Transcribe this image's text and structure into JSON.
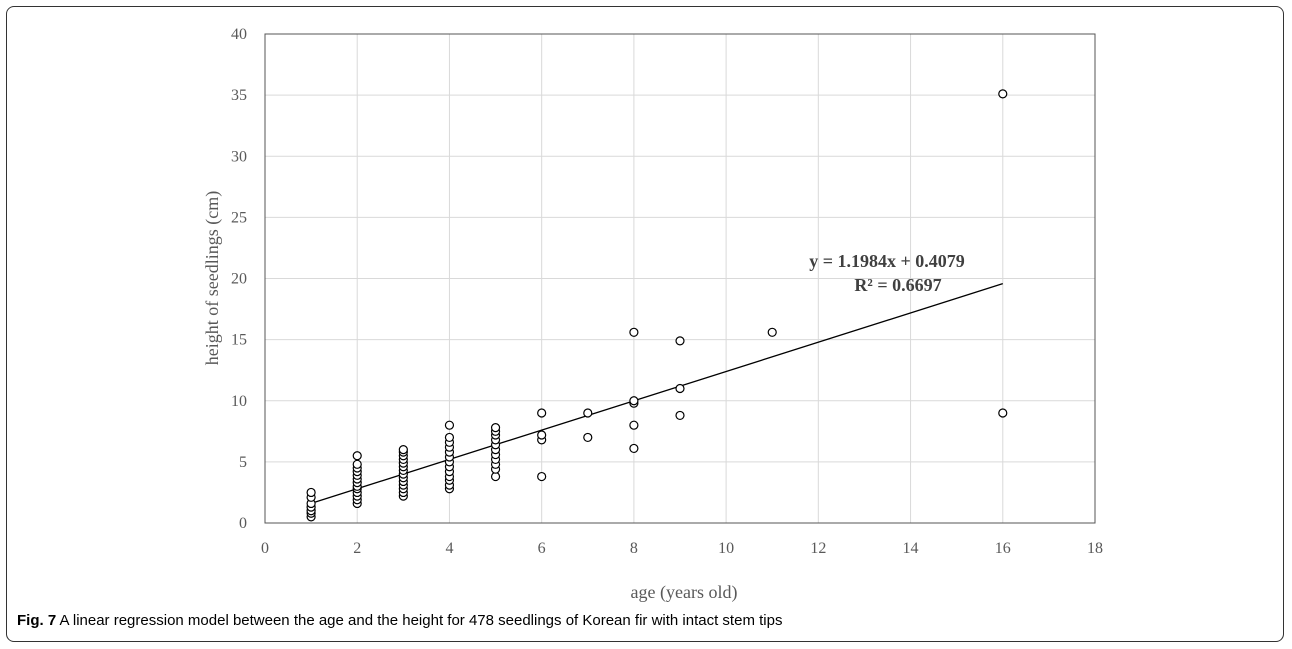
{
  "caption": {
    "label": "Fig. 7",
    "text": "A linear regression model between the age and the height for 478 seedlings of Korean fir with intact stem tips"
  },
  "chart_data": {
    "type": "scatter",
    "xlabel": "age (years old)",
    "ylabel": "height  of seedlings  (cm)",
    "xlim": [
      0,
      18
    ],
    "ylim": [
      0,
      40
    ],
    "xticks": [
      0,
      2,
      4,
      6,
      8,
      10,
      12,
      14,
      16,
      18
    ],
    "yticks": [
      0,
      5,
      10,
      15,
      20,
      25,
      30,
      35,
      40
    ],
    "grid": true,
    "points": [
      [
        1,
        0.5
      ],
      [
        1,
        0.8
      ],
      [
        1,
        1.0
      ],
      [
        1,
        1.3
      ],
      [
        1,
        1.6
      ],
      [
        1,
        2.1
      ],
      [
        1,
        2.5
      ],
      [
        2,
        1.6
      ],
      [
        2,
        1.9
      ],
      [
        2,
        2.2
      ],
      [
        2,
        2.5
      ],
      [
        2,
        2.8
      ],
      [
        2,
        3.0
      ],
      [
        2,
        3.3
      ],
      [
        2,
        3.6
      ],
      [
        2,
        3.9
      ],
      [
        2,
        4.2
      ],
      [
        2,
        4.5
      ],
      [
        2,
        4.8
      ],
      [
        2,
        5.5
      ],
      [
        3,
        2.2
      ],
      [
        3,
        2.5
      ],
      [
        3,
        2.8
      ],
      [
        3,
        3.1
      ],
      [
        3,
        3.4
      ],
      [
        3,
        3.7
      ],
      [
        3,
        4.0
      ],
      [
        3,
        4.3
      ],
      [
        3,
        4.6
      ],
      [
        3,
        4.9
      ],
      [
        3,
        5.2
      ],
      [
        3,
        5.5
      ],
      [
        3,
        5.8
      ],
      [
        3,
        6.0
      ],
      [
        4,
        2.8
      ],
      [
        4,
        3.1
      ],
      [
        4,
        3.5
      ],
      [
        4,
        3.8
      ],
      [
        4,
        4.2
      ],
      [
        4,
        4.6
      ],
      [
        4,
        5.0
      ],
      [
        4,
        5.4
      ],
      [
        4,
        5.8
      ],
      [
        4,
        6.2
      ],
      [
        4,
        6.6
      ],
      [
        4,
        7.0
      ],
      [
        4,
        8.0
      ],
      [
        5,
        3.8
      ],
      [
        5,
        4.4
      ],
      [
        5,
        4.8
      ],
      [
        5,
        5.2
      ],
      [
        5,
        5.6
      ],
      [
        5,
        6.0
      ],
      [
        5,
        6.4
      ],
      [
        5,
        6.8
      ],
      [
        5,
        7.2
      ],
      [
        5,
        7.5
      ],
      [
        5,
        7.8
      ],
      [
        6,
        3.8
      ],
      [
        6,
        6.8
      ],
      [
        6,
        7.2
      ],
      [
        6,
        9.0
      ],
      [
        7,
        7.0
      ],
      [
        7,
        9.0
      ],
      [
        8,
        6.1
      ],
      [
        8,
        8.0
      ],
      [
        8,
        9.8
      ],
      [
        8,
        10.0
      ],
      [
        8,
        15.6
      ],
      [
        9,
        8.8
      ],
      [
        9,
        11.0
      ],
      [
        9,
        14.9
      ],
      [
        11,
        15.6
      ],
      [
        16,
        9.0
      ],
      [
        16,
        35.1
      ]
    ],
    "trendline": {
      "slope": 1.1984,
      "intercept": 0.4079,
      "x_range": [
        1,
        16
      ],
      "equation": "y = 1.1984x + 0.4079",
      "r2": "R² = 0.6697"
    }
  }
}
